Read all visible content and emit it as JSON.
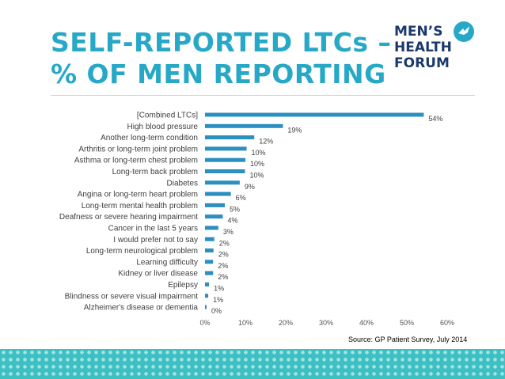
{
  "header": {
    "title_line1": "SELF-REPORTED LTCs –",
    "title_line2": "% OF MEN REPORTING",
    "logo_line1": "MEN’S",
    "logo_line2": "HEALTH",
    "logo_line3": "FORUM"
  },
  "colors": {
    "title": "#27a8c6",
    "bar": "#2c8fc1",
    "logo": "#1b3a6b",
    "logo_icon": "#27a8c6",
    "footer": "#3dc0c4"
  },
  "source": "Source: GP Patient Survey, July 2014",
  "chart_data": {
    "type": "bar",
    "orientation": "horizontal",
    "title": "",
    "xlabel": "",
    "ylabel": "",
    "xlim": [
      0,
      60
    ],
    "grid": false,
    "xticks": [
      "0%",
      "10%",
      "20%",
      "30%",
      "40%",
      "50%",
      "60%"
    ],
    "categories": [
      "[Combined LTCs]",
      "High blood pressure",
      "Another long-term condition",
      "Arthritis or long-term joint problem",
      "Asthma or long-term chest problem",
      "Long-term back problem",
      "Diabetes",
      "Angina or long-term heart problem",
      "Long-term mental health problem",
      "Deafness or severe hearing impairment",
      "Cancer in the last 5 years",
      "I would prefer not to say",
      "Long-term neurological problem",
      "Learning difficulty",
      "Kidney or liver disease",
      "Epilepsy",
      "Blindness or severe visual impairment",
      "Alzheimer's disease or dementia"
    ],
    "values": [
      54,
      19,
      12,
      10,
      10,
      10,
      9,
      6,
      5,
      4,
      3,
      2,
      2,
      2,
      2,
      1,
      1,
      0
    ],
    "value_labels": [
      "54%",
      "19%",
      "12%",
      "10%",
      "10%",
      "10%",
      "9%",
      "6%",
      "5%",
      "4%",
      "3%",
      "2%",
      "2%",
      "2%",
      "2%",
      "1%",
      "1%",
      "0%"
    ],
    "plot_values": [
      54.2,
      19.3,
      12.2,
      10.3,
      10.0,
      9.9,
      8.6,
      6.4,
      4.9,
      4.4,
      3.3,
      2.3,
      2.1,
      2.0,
      2.0,
      1.0,
      0.8,
      0.4
    ]
  }
}
